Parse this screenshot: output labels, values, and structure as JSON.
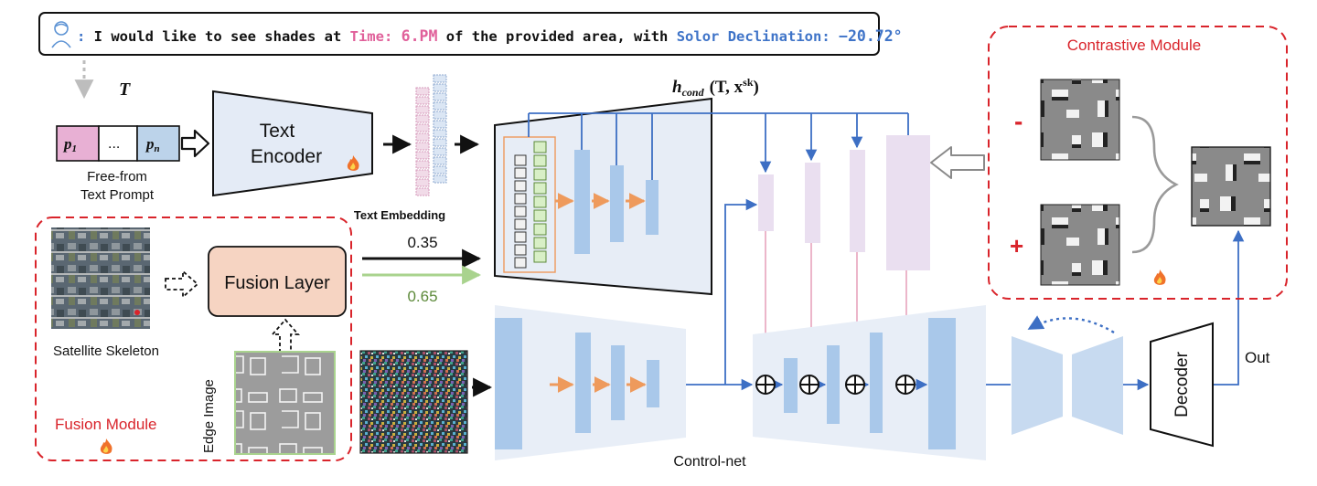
{
  "prompt": {
    "pre": "I would like to see shades at ",
    "time_label": "Time:",
    "time_value": "6.PM",
    "mid": " of the provided area, with ",
    "decl_label": "Solor Declination:",
    "decl_value": "−20.72°",
    "colon": ": "
  },
  "token_input": {
    "symbol": "T",
    "p_first": "p",
    "p_first_sub": "1",
    "ellipsis": "...",
    "p_last": "p",
    "p_last_sub": "n",
    "caption_line1": "Free-from",
    "caption_line2": "Text Prompt"
  },
  "text_encoder": {
    "line1": "Text",
    "line2": "Encoder"
  },
  "text_embedding_label": "Text Embedding",
  "hcond": {
    "symbol": "h",
    "sub": "cond",
    "args_pre": "(T, x",
    "args_sup": "sk",
    "args_post": ")"
  },
  "fusion": {
    "layer_label": "Fusion Layer",
    "module_label": "Fusion Module",
    "satellite_label": "Satellite Skeleton",
    "edge_label": "Edge Image",
    "weight_black": "0.35",
    "weight_green": "0.65"
  },
  "contrastive": {
    "title": "Contrastive Module",
    "minus": "-",
    "plus": "+"
  },
  "controlnet_label": "Control-net",
  "decoder_label": "Decoder",
  "out_label": "Out",
  "colors": {
    "red_dash": "#d9242b",
    "blue_arrow": "#3d6fc4",
    "pink_arrow": "#e8a3bd",
    "orange_arrow": "#ee9a5c",
    "green_arrow": "#a9d38e",
    "weight_green": "#5d8a3a",
    "block_blue": "#a9c8ea",
    "block_light": "#dbe6f4",
    "lilac": "#eadff0",
    "fusion_fill": "#f6d4c2",
    "time_pink": "#e0609a",
    "decl_blue": "#3f74c8"
  },
  "icons": [
    "user-icon",
    "fire-icon",
    "plus-circle-icon",
    "curly-brace-icon"
  ]
}
